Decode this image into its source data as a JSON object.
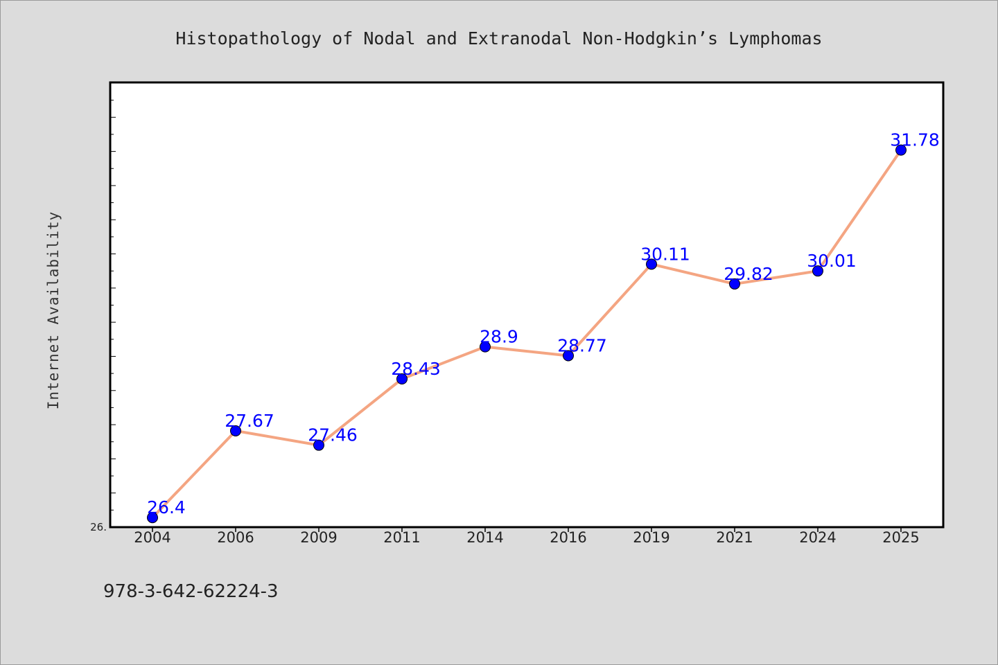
{
  "chart_data": {
    "type": "line",
    "title": "Histopathology of Nodal and Extranodal Non-Hodgkin’s Lymphomas",
    "xlabel": "",
    "ylabel": "Internet Availability",
    "categories": [
      "2004",
      "2006",
      "2009",
      "2011",
      "2014",
      "2016",
      "2019",
      "2021",
      "2024",
      "2025"
    ],
    "series": [
      {
        "values": [
          26.4,
          27.67,
          27.46,
          28.43,
          28.9,
          28.77,
          30.11,
          29.82,
          30.01,
          31.78
        ],
        "labels": [
          "26.4",
          "27.67",
          "27.46",
          "28.43",
          "28.9",
          "28.77",
          "30.11",
          "29.82",
          "30.01",
          "31.78"
        ]
      }
    ],
    "ylim": [
      26.26,
      32.77
    ],
    "ytick_label": "26.",
    "line_color": "#f4a582",
    "marker_color": "#0000ff",
    "label_color": "#0000ff",
    "grid": false,
    "legend": "none"
  },
  "footer": {
    "isbn": "978-3-642-62224-3"
  }
}
